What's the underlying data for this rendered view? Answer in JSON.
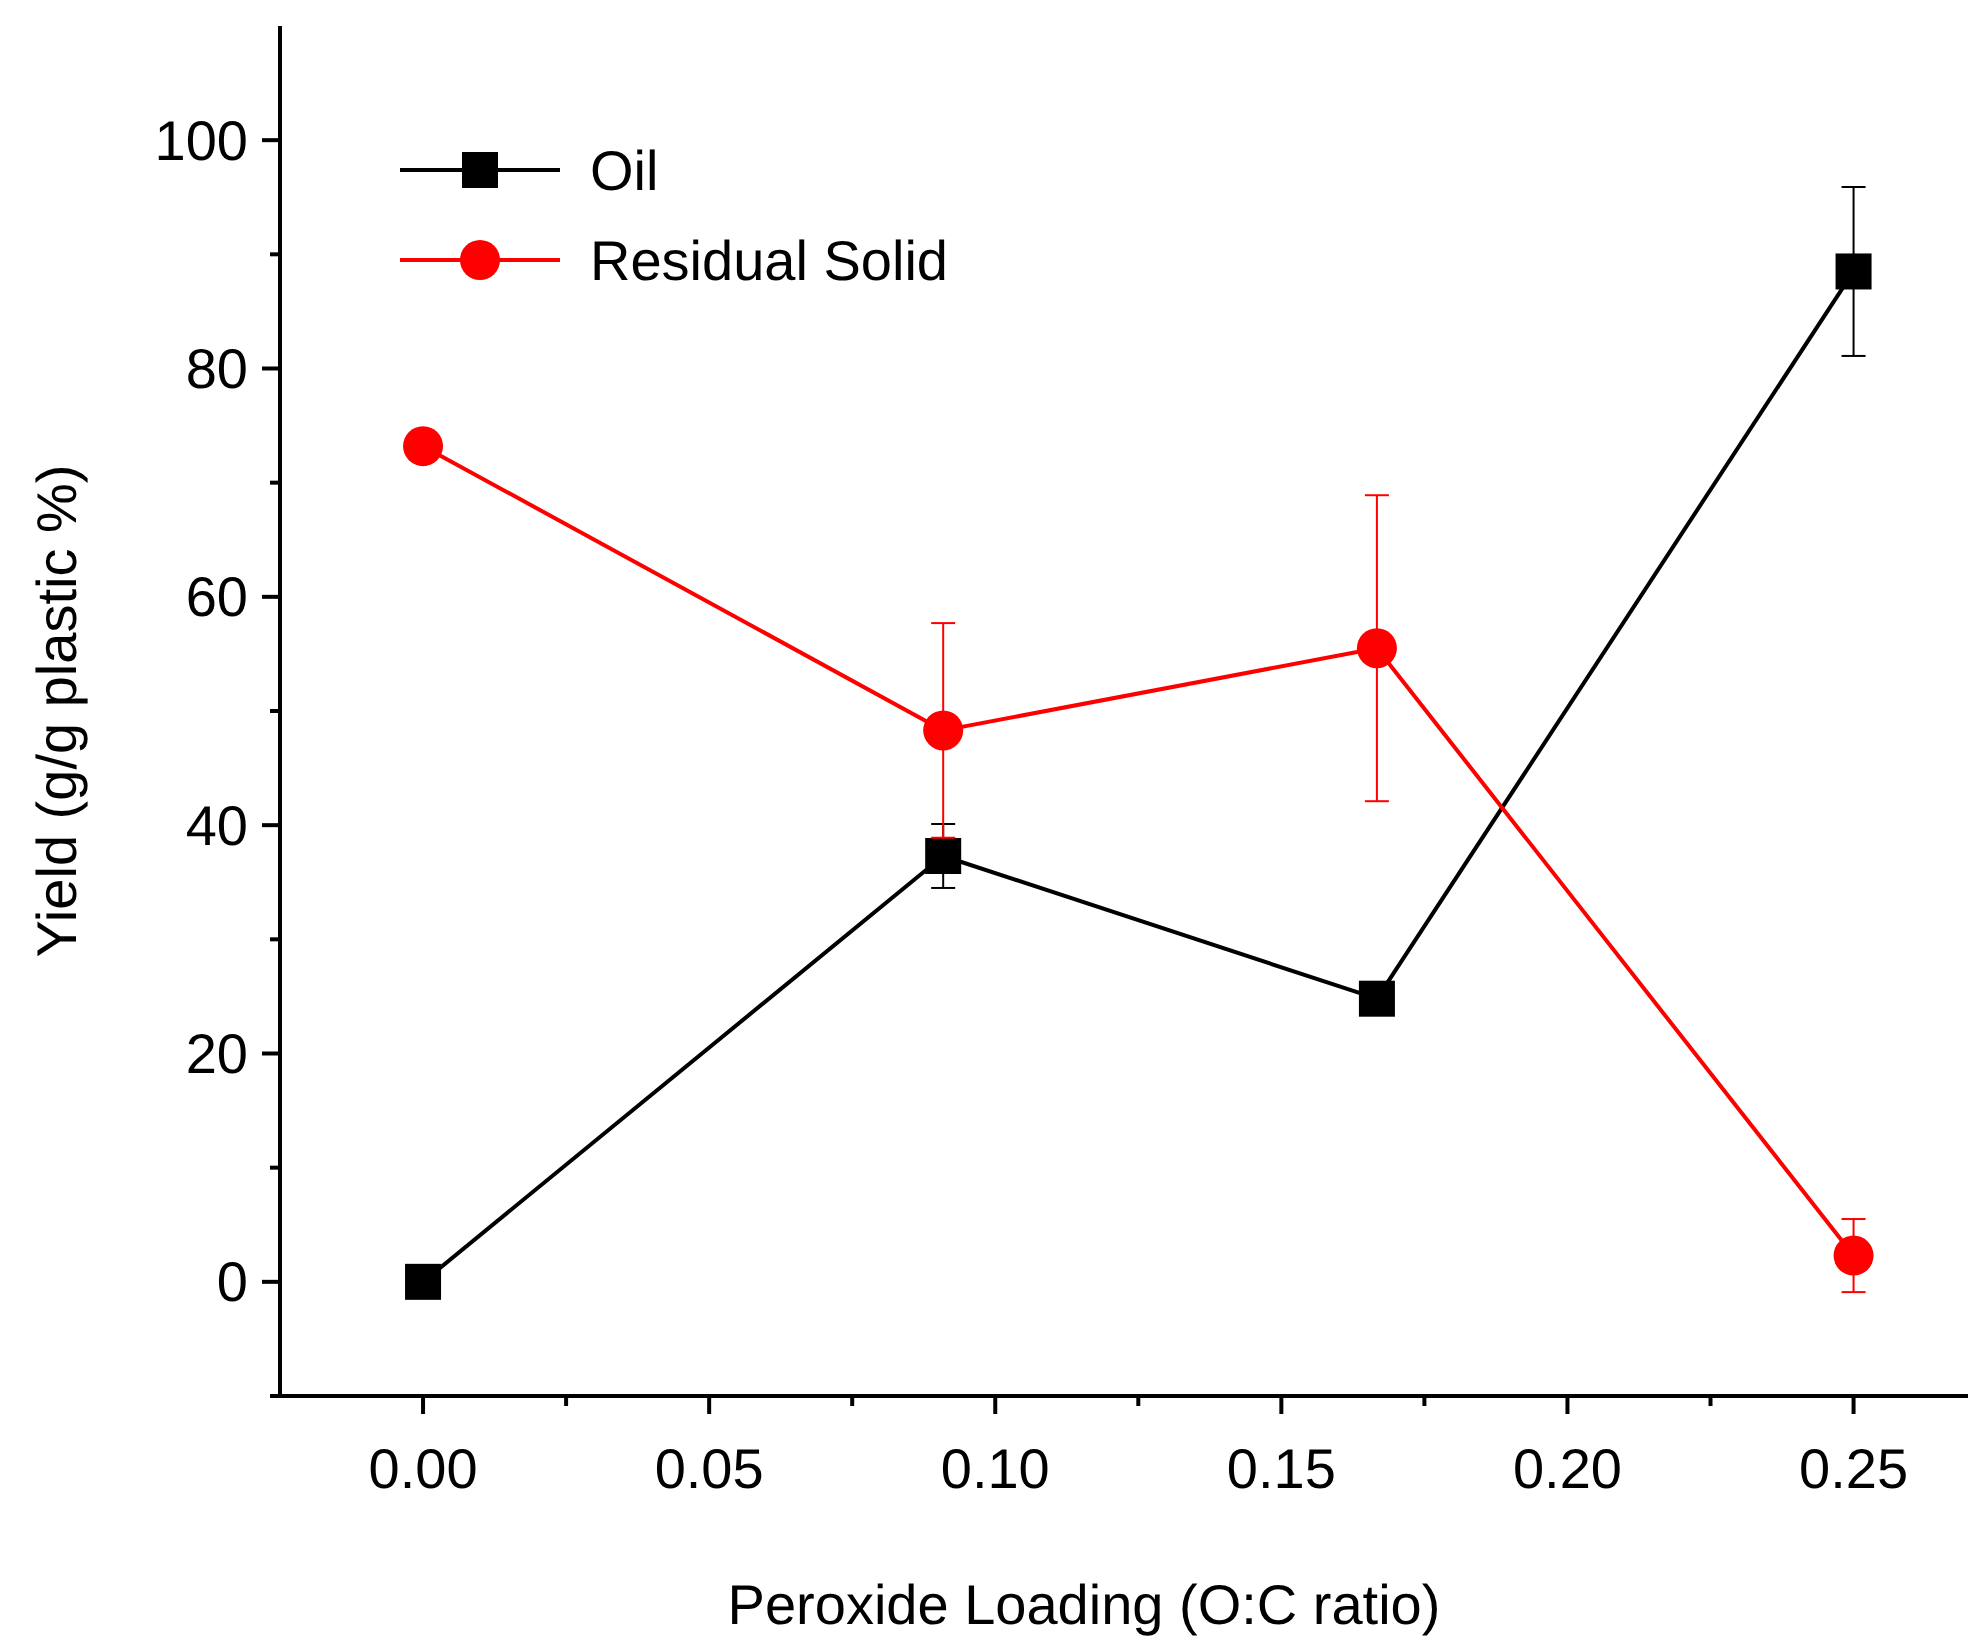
{
  "chart_data": {
    "type": "line",
    "xlabel": "Peroxide Loading (O:C ratio)",
    "ylabel": "Yield (g/g plastic %)",
    "x": [
      0,
      0.0909,
      0.1667,
      0.25
    ],
    "series": [
      {
        "name": "Oil",
        "color": "#000000",
        "marker": "square",
        "values": [
          0,
          37.3,
          24.8,
          88.5
        ],
        "errors": [
          null,
          2.8,
          null,
          7.4
        ]
      },
      {
        "name": "Residual Solid",
        "color": "#ff0000",
        "marker": "circle",
        "values": [
          73.2,
          48.3,
          55.5,
          2.3
        ],
        "errors": [
          null,
          9.4,
          13.4,
          3.2
        ]
      }
    ],
    "xlim": [
      -0.025,
      0.27
    ],
    "ylim": [
      -10,
      110
    ],
    "xticks": [
      {
        "value": 0,
        "label": "0.00"
      },
      {
        "value": 0.025,
        "label": null
      },
      {
        "value": 0.05,
        "label": "0.05"
      },
      {
        "value": 0.075,
        "label": null
      },
      {
        "value": 0.1,
        "label": "0.10"
      },
      {
        "value": 0.125,
        "label": null
      },
      {
        "value": 0.15,
        "label": "0.15"
      },
      {
        "value": 0.175,
        "label": null
      },
      {
        "value": 0.2,
        "label": "0.20"
      },
      {
        "value": 0.225,
        "label": null
      },
      {
        "value": 0.25,
        "label": "0.25"
      }
    ],
    "yticks": [
      {
        "value": -10,
        "label": null
      },
      0,
      {
        "value": 10,
        "label": null
      },
      20,
      {
        "value": 30,
        "label": null
      },
      40,
      {
        "value": 50,
        "label": null
      },
      60,
      {
        "value": 70,
        "label": null
      },
      80,
      {
        "value": 90,
        "label": null
      },
      100
    ],
    "legend": "top left",
    "grid": false,
    "line_style": "solid"
  }
}
